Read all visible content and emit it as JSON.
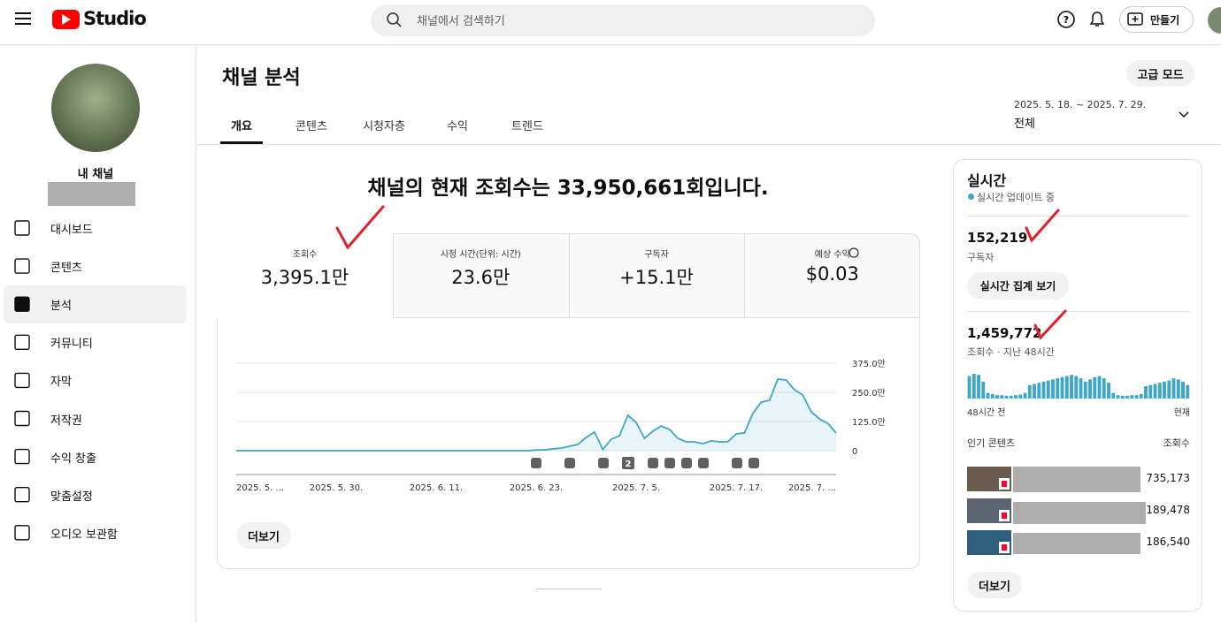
{
  "header": {
    "logo": "Studio",
    "search_placeholder": "채널에서 검색하기",
    "create_button": "만들기"
  },
  "sidebar": {
    "channel_name": "내 채널",
    "menu": [
      "대시보드",
      "콘텐츠",
      "분석",
      "커뮤니티",
      "자막",
      "저작권",
      "수익 창출",
      "맞춤설정",
      "오디오 보관함"
    ]
  },
  "page": {
    "title": "채널 분석",
    "advanced_mode": "고급 모드",
    "tabs": [
      "개요",
      "콘텐츠",
      "시청자층",
      "수익",
      "트렌드"
    ],
    "date_range": "2025. 5. 18. ~ 2025. 7. 29.",
    "date_scope": "전체"
  },
  "overview": {
    "headline": "채널의 현재 조회수는 33,950,661회입니다.",
    "metrics": [
      {
        "label": "조회수",
        "value": "3,395.1만"
      },
      {
        "label": "시청 시간(단위: 시간)",
        "value": "23.6만"
      },
      {
        "label": "구독자",
        "value": "+15.1만"
      },
      {
        "label": "예상 수익",
        "value": "$0.03"
      }
    ],
    "chart": {
      "type": "line",
      "color": "#3ea6c6",
      "categories": [
        "2025. 5. ...",
        null,
        null,
        null,
        null,
        null,
        null,
        null,
        null,
        null,
        null,
        null,
        "2025. 5. 30.",
        null,
        null,
        null,
        null,
        null,
        null,
        null,
        null,
        null,
        null,
        null,
        "2025. 6. 11.",
        null,
        null,
        null,
        null,
        null,
        null,
        null,
        null,
        null,
        null,
        null,
        "2025. 6. 23.",
        null,
        null,
        null,
        null,
        null,
        null,
        null,
        null,
        null,
        null,
        null,
        "2025. 7. 5.",
        null,
        null,
        null,
        null,
        null,
        null,
        null,
        null,
        null,
        null,
        null,
        "2025. 7. 17.",
        null,
        null,
        null,
        null,
        null,
        null,
        null,
        null,
        null,
        null,
        null,
        "2025. 7. ..."
      ],
      "values": [
        0,
        0,
        0,
        0,
        0,
        0,
        0,
        0,
        0,
        0,
        0,
        0,
        0,
        0,
        0,
        0,
        0,
        0,
        0,
        0,
        0,
        0,
        0,
        0,
        0,
        0,
        0,
        0,
        0,
        0,
        0,
        0,
        0,
        0,
        0,
        0,
        30000,
        30000,
        80000,
        110000,
        190000,
        270000,
        570000,
        800000,
        50000,
        490000,
        640000,
        1520000,
        1210000,
        530000,
        830000,
        1060000,
        910000,
        530000,
        380000,
        380000,
        300000,
        420000,
        380000,
        380000,
        720000,
        760000,
        1590000,
        2080000,
        2160000,
        3070000,
        3030000,
        2610000,
        2390000,
        1670000,
        1360000,
        1170000,
        760000
      ],
      "ylim": [
        0,
        3750000
      ],
      "yticks": [
        0,
        {
          "value": 1250000,
          "label": "125.0만"
        },
        {
          "value": 2500000,
          "label": "250.0만"
        },
        {
          "value": 3750000,
          "label": "375.0만"
        }
      ],
      "grid": true,
      "marker_badge": "2"
    },
    "more_button": "더보기"
  },
  "realtime": {
    "title": "실시간",
    "status": "실시간 업데이트 중",
    "subscribers": "152,219",
    "subscribers_label": "구독자",
    "live_count_button": "실시간 집계 보기",
    "views": "1,459,772",
    "views_label": "조회수 · 지난 48시간",
    "hourly": {
      "type": "bar",
      "color": "#3ea6c6",
      "values": [
        40000,
        44000,
        42000,
        30000,
        10000,
        8000,
        6000,
        6000,
        5000,
        5000,
        6000,
        7000,
        10000,
        24000,
        26000,
        28000,
        30000,
        32000,
        34000,
        36000,
        38000,
        40000,
        42000,
        40000,
        36000,
        30000,
        34000,
        38000,
        40000,
        36000,
        28000,
        10000,
        6000,
        5000,
        5000,
        6000,
        6000,
        8000,
        22000,
        24000,
        26000,
        28000,
        30000,
        32000,
        36000,
        34000,
        30000,
        24000
      ],
      "start_label": "48시간 전",
      "end_label": "현재"
    },
    "top_content_label": "인기 콘텐츠",
    "top_content_metric": "조회수",
    "top_content": [
      "735,173",
      "189,478",
      "186,540"
    ],
    "more_button": "더보기"
  }
}
